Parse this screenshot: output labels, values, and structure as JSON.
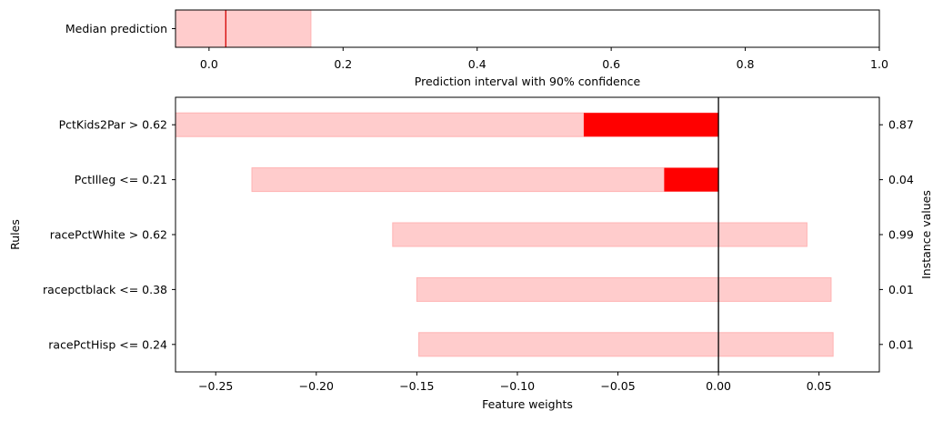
{
  "chart_data": [
    {
      "type": "bar",
      "orientation": "horizontal",
      "categories": [
        "Median prediction"
      ],
      "median": 0.025,
      "interval": [
        -0.05,
        0.152
      ],
      "xlabel": "Prediction interval with 90% confidence",
      "xlim": [
        -0.05,
        1.0
      ],
      "xticks": [
        0.0,
        0.2,
        0.4,
        0.6,
        0.8,
        1.0
      ],
      "xtick_labels": [
        "0.0",
        "0.2",
        "0.4",
        "0.6",
        "0.8",
        "1.0"
      ],
      "colors": {
        "interval": "#ffcccc",
        "median": "#d40000"
      }
    },
    {
      "type": "bar",
      "orientation": "horizontal",
      "categories": [
        "PctKids2Par > 0.62",
        "PctIlleg <= 0.21",
        "racePctWhite > 0.62",
        "racepctblack <= 0.38",
        "racePctHisp <= 0.24"
      ],
      "weights": [
        -0.067,
        -0.027,
        0.0,
        0.0,
        0.0
      ],
      "intervals": [
        [
          -0.27,
          0.0
        ],
        [
          -0.232,
          0.0
        ],
        [
          -0.162,
          0.044
        ],
        [
          -0.15,
          0.056
        ],
        [
          -0.149,
          0.057
        ]
      ],
      "instance_values": [
        "0.87",
        "0.04",
        "0.99",
        "0.01",
        "0.01"
      ],
      "xlabel": "Feature weights",
      "ylabel": "Rules",
      "y2label": "Instance values",
      "xlim": [
        -0.27,
        0.08
      ],
      "xticks": [
        -0.25,
        -0.2,
        -0.15,
        -0.1,
        -0.05,
        0.0,
        0.05
      ],
      "xtick_labels": [
        "−0.25",
        "−0.20",
        "−0.15",
        "−0.10",
        "−0.05",
        "0.00",
        "0.05"
      ],
      "colors": {
        "interval": "#ffcccc",
        "weight": "#ff0000",
        "zero_line": "#000000"
      }
    }
  ]
}
